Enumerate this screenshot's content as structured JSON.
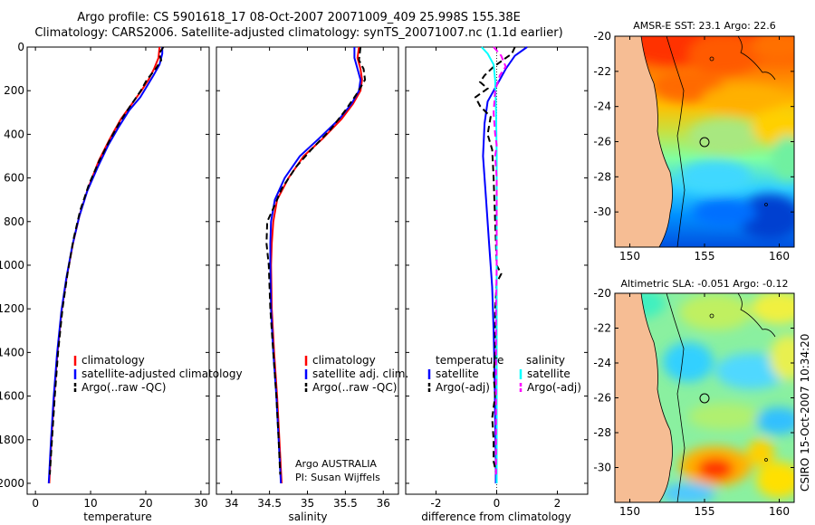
{
  "title": {
    "line1": "Argo profile: CS 5901618_17 08-Oct-2007 20071009_409 25.998S 155.38E",
    "line2": "Climatology: CARS2006. Satellite-adjusted climatology: synTS_20071007.nc (1.1d earlier)"
  },
  "credit": "CSIRO 15-Oct-2007 10:34:20",
  "chart_data": [
    {
      "type": "line",
      "id": "temperature",
      "xlabel": "temperature",
      "xlim": [
        -1.5,
        31.5
      ],
      "xticks": [
        0,
        10,
        20,
        30
      ],
      "ylim": [
        0,
        2050
      ],
      "yticks": [
        0,
        200,
        400,
        600,
        800,
        1000,
        1200,
        1400,
        1600,
        1800,
        2000
      ],
      "reverse_y": true,
      "legend": [
        "climatology",
        "satellite-adjusted climatology",
        "Argo(..raw -QC)"
      ],
      "series": [
        {
          "name": "climatology",
          "color": "#ff0000",
          "style": "solid",
          "points": [
            [
              22.5,
              0
            ],
            [
              22.3,
              50
            ],
            [
              21.5,
              100
            ],
            [
              20.5,
              150
            ],
            [
              19.2,
              200
            ],
            [
              17.5,
              260
            ],
            [
              15.5,
              330
            ],
            [
              13.5,
              420
            ],
            [
              11.5,
              520
            ],
            [
              9.5,
              650
            ],
            [
              8,
              770
            ],
            [
              6.8,
              900
            ],
            [
              5.7,
              1050
            ],
            [
              4.8,
              1200
            ],
            [
              4,
              1400
            ],
            [
              3.4,
              1600
            ],
            [
              2.9,
              1800
            ],
            [
              2.5,
              2000
            ]
          ]
        },
        {
          "name": "satellite-adjusted climatology",
          "color": "#0000ff",
          "style": "solid",
          "points": [
            [
              23,
              0
            ],
            [
              23,
              30
            ],
            [
              22.5,
              80
            ],
            [
              21.4,
              130
            ],
            [
              20.2,
              180
            ],
            [
              19,
              230
            ],
            [
              17,
              290
            ],
            [
              15,
              370
            ],
            [
              13.2,
              450
            ],
            [
              11.3,
              550
            ],
            [
              9.4,
              660
            ],
            [
              7.9,
              780
            ],
            [
              6.7,
              910
            ],
            [
              5.6,
              1060
            ],
            [
              4.7,
              1210
            ],
            [
              3.9,
              1410
            ],
            [
              3.3,
              1610
            ],
            [
              2.8,
              1810
            ],
            [
              2.4,
              2000
            ]
          ]
        },
        {
          "name": "Argo(..raw -QC)",
          "color": "#000000",
          "style": "dashed",
          "points": [
            [
              23.2,
              0
            ],
            [
              22.4,
              30
            ],
            [
              22.8,
              60
            ],
            [
              21.8,
              100
            ],
            [
              20.2,
              150
            ],
            [
              19.1,
              200
            ],
            [
              17.2,
              270
            ],
            [
              15.4,
              340
            ],
            [
              13.6,
              420
            ],
            [
              11.6,
              520
            ],
            [
              9.7,
              630
            ],
            [
              8.1,
              750
            ],
            [
              6.9,
              880
            ],
            [
              5.8,
              1040
            ],
            [
              4.9,
              1200
            ],
            [
              4.1,
              1400
            ],
            [
              3.5,
              1600
            ],
            [
              3,
              1800
            ],
            [
              2.6,
              1960
            ]
          ]
        }
      ]
    },
    {
      "type": "line",
      "id": "salinity",
      "xlabel": "salinity",
      "xlim": [
        33.8,
        36.2
      ],
      "xticks": [
        34,
        34.5,
        35,
        35.5,
        36
      ],
      "ylim": [
        0,
        2050
      ],
      "reverse_y": true,
      "legend": [
        "climatology",
        "satellite adj. clim.",
        "Argo(..raw -QC)"
      ],
      "annotation": [
        "Argo AUSTRALIA",
        "PI: Susan Wijffels"
      ],
      "series": [
        {
          "name": "climatology",
          "color": "#ff0000",
          "style": "solid",
          "points": [
            [
              35.68,
              0
            ],
            [
              35.66,
              50
            ],
            [
              35.7,
              100
            ],
            [
              35.72,
              150
            ],
            [
              35.7,
              200
            ],
            [
              35.6,
              260
            ],
            [
              35.45,
              330
            ],
            [
              35.2,
              420
            ],
            [
              34.95,
              500
            ],
            [
              34.75,
              600
            ],
            [
              34.6,
              700
            ],
            [
              34.55,
              800
            ],
            [
              34.53,
              900
            ],
            [
              34.52,
              1000
            ],
            [
              34.53,
              1200
            ],
            [
              34.56,
              1400
            ],
            [
              34.6,
              1600
            ],
            [
              34.63,
              1800
            ],
            [
              34.66,
              2000
            ]
          ]
        },
        {
          "name": "satellite adj. clim.",
          "color": "#0000ff",
          "style": "solid",
          "points": [
            [
              35.62,
              0
            ],
            [
              35.62,
              50
            ],
            [
              35.66,
              100
            ],
            [
              35.7,
              150
            ],
            [
              35.68,
              200
            ],
            [
              35.58,
              260
            ],
            [
              35.42,
              330
            ],
            [
              35.15,
              420
            ],
            [
              34.9,
              500
            ],
            [
              34.7,
              600
            ],
            [
              34.57,
              700
            ],
            [
              34.52,
              800
            ],
            [
              34.51,
              900
            ],
            [
              34.51,
              1000
            ],
            [
              34.52,
              1200
            ],
            [
              34.55,
              1400
            ],
            [
              34.59,
              1600
            ],
            [
              34.62,
              1800
            ],
            [
              34.65,
              2000
            ]
          ]
        },
        {
          "name": "Argo(..raw -QC)",
          "color": "#000000",
          "style": "dashed",
          "points": [
            [
              35.7,
              0
            ],
            [
              35.68,
              60
            ],
            [
              35.74,
              100
            ],
            [
              35.76,
              150
            ],
            [
              35.64,
              220
            ],
            [
              35.5,
              290
            ],
            [
              35.3,
              380
            ],
            [
              35.05,
              470
            ],
            [
              34.85,
              550
            ],
            [
              34.66,
              650
            ],
            [
              34.55,
              740
            ],
            [
              34.47,
              800
            ],
            [
              34.46,
              900
            ],
            [
              34.49,
              1000
            ],
            [
              34.51,
              1200
            ],
            [
              34.55,
              1400
            ],
            [
              34.59,
              1600
            ],
            [
              34.62,
              1800
            ],
            [
              34.64,
              1960
            ]
          ]
        }
      ]
    },
    {
      "type": "line",
      "id": "difference",
      "xlabel": "difference from climatology",
      "xlim": [
        -3,
        3
      ],
      "xticks": [
        -2,
        0,
        2
      ],
      "ylim": [
        0,
        2050
      ],
      "reverse_y": true,
      "legend_headers": [
        "temperature",
        "salinity"
      ],
      "legend": [
        "satellite",
        "Argo(-adj)",
        "satellite",
        "Argo(-adj)"
      ],
      "series": [
        {
          "name": "temperature satellite",
          "color": "#0000ff",
          "style": "solid",
          "points": [
            [
              1,
              0
            ],
            [
              0.6,
              40
            ],
            [
              0.3,
              100
            ],
            [
              0.1,
              150
            ],
            [
              -0.1,
              200
            ],
            [
              -0.3,
              250
            ],
            [
              -0.4,
              350
            ],
            [
              -0.45,
              500
            ],
            [
              -0.35,
              700
            ],
            [
              -0.25,
              900
            ],
            [
              -0.15,
              1100
            ],
            [
              -0.1,
              1300
            ],
            [
              -0.07,
              1500
            ],
            [
              -0.05,
              1700
            ],
            [
              -0.03,
              1900
            ],
            [
              -0.03,
              2000
            ]
          ]
        },
        {
          "name": "temperature Argo(-adj)",
          "color": "#000000",
          "style": "dashed",
          "points": [
            [
              0.6,
              0
            ],
            [
              0.5,
              30
            ],
            [
              0.2,
              60
            ],
            [
              -0.1,
              90
            ],
            [
              -0.4,
              130
            ],
            [
              -0.55,
              160
            ],
            [
              -0.3,
              190
            ],
            [
              -0.7,
              230
            ],
            [
              -0.55,
              270
            ],
            [
              -0.2,
              320
            ],
            [
              -0.3,
              400
            ],
            [
              -0.15,
              470
            ],
            [
              -0.1,
              600
            ],
            [
              -0.05,
              800
            ],
            [
              0,
              1000
            ],
            [
              0.15,
              1040
            ],
            [
              0,
              1080
            ],
            [
              -0.05,
              1200
            ],
            [
              -0.05,
              1400
            ],
            [
              -0.1,
              1500
            ],
            [
              -0.05,
              1600
            ],
            [
              -0.15,
              1700
            ],
            [
              -0.1,
              1800
            ],
            [
              -0.1,
              1900
            ],
            [
              0,
              1960
            ]
          ]
        },
        {
          "name": "salinity satellite",
          "color": "#00ffff",
          "style": "solid",
          "points": [
            [
              -0.5,
              0
            ],
            [
              -0.3,
              30
            ],
            [
              -0.1,
              80
            ],
            [
              -0.05,
              150
            ],
            [
              -0.02,
              300
            ],
            [
              0,
              500
            ],
            [
              0,
              800
            ],
            [
              0,
              1100
            ],
            [
              0,
              1400
            ],
            [
              0,
              1700
            ],
            [
              0,
              2000
            ]
          ]
        },
        {
          "name": "salinity Argo(-adj)",
          "color": "#ff00ff",
          "style": "dashed",
          "points": [
            [
              -0.1,
              0
            ],
            [
              0.15,
              40
            ],
            [
              0.3,
              90
            ],
            [
              0.1,
              130
            ],
            [
              -0.05,
              200
            ],
            [
              -0.1,
              300
            ],
            [
              -0.05,
              400
            ],
            [
              0,
              450
            ],
            [
              -0.05,
              500
            ],
            [
              0,
              600
            ],
            [
              0,
              800
            ],
            [
              0,
              1000
            ],
            [
              -0.02,
              1200
            ],
            [
              -0.02,
              1400
            ],
            [
              -0.02,
              1600
            ],
            [
              -0.02,
              1800
            ],
            [
              -0.02,
              1960
            ]
          ]
        }
      ]
    },
    {
      "type": "heatmap",
      "id": "sst-map",
      "title": "AMSR-E SST: 23.1 Argo: 22.6",
      "xlim": [
        149,
        161
      ],
      "ylim": [
        -32,
        -20
      ],
      "xticks": [
        150,
        155,
        160
      ],
      "yticks": [
        -20,
        -22,
        -24,
        -26,
        -28,
        -30
      ],
      "float_position": [
        155.38,
        -25.998
      ]
    },
    {
      "type": "heatmap",
      "id": "sla-map",
      "title": "Altimetric SLA: -0.051 Argo: -0.12",
      "xlim": [
        149,
        161
      ],
      "ylim": [
        -32,
        -20
      ],
      "xticks": [
        150,
        155,
        160
      ],
      "yticks": [
        -20,
        -22,
        -24,
        -26,
        -28,
        -30
      ],
      "float_position": [
        155.38,
        -25.998
      ]
    }
  ]
}
